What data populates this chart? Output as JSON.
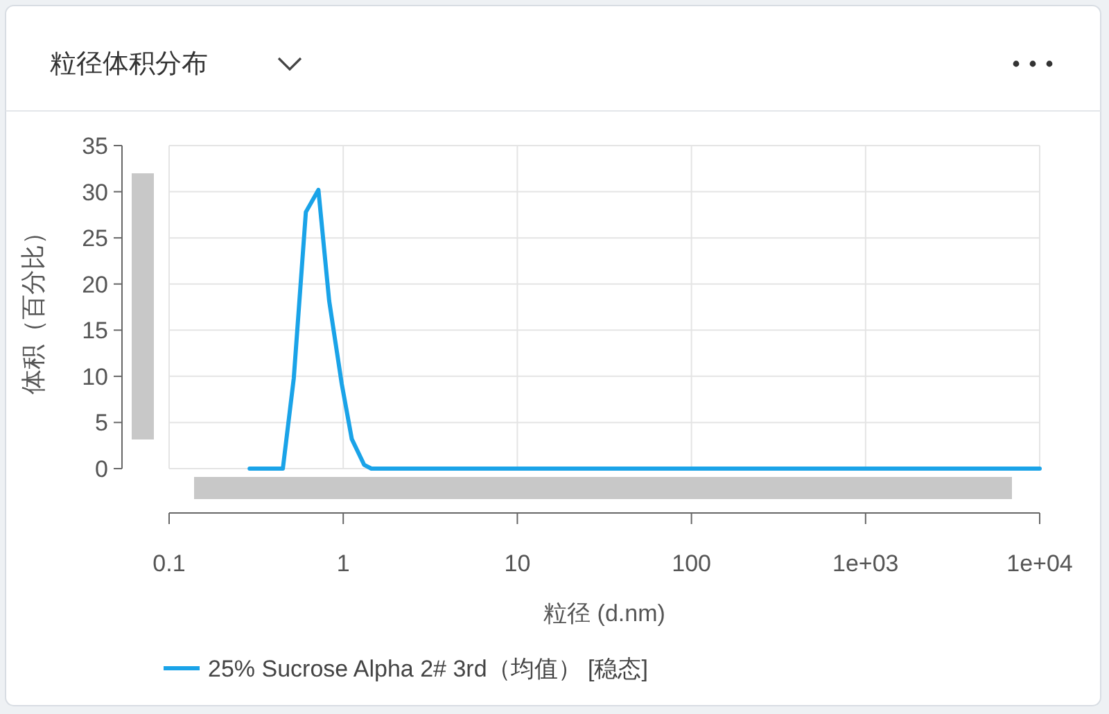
{
  "chart_data": {
    "type": "line",
    "title": "粒径体积分布",
    "xlabel": "粒径 (d.nm)",
    "ylabel": "体积（百分比）",
    "log": "x",
    "grid": true,
    "legend": "bottom",
    "xlim": [
      0.1,
      10000
    ],
    "ylim": [
      0,
      35
    ],
    "xticks": [
      0.1,
      1,
      10,
      100,
      {
        "value": 1000,
        "label": "1e+03"
      },
      {
        "value": 10000,
        "label": "1e+04"
      }
    ],
    "yticks": [
      0,
      5,
      10,
      15,
      20,
      25,
      30,
      35
    ],
    "x": [
      0.29,
      0.45,
      0.52,
      0.61,
      0.72,
      0.83,
      0.98,
      1.12,
      1.32,
      1.45,
      10000
    ],
    "series": [
      {
        "name": "25% Sucrose Alpha 2# 3rd（均值） [稳态]",
        "color": "#1aa3e8",
        "values": [
          0,
          0,
          9.8,
          27.8,
          30.2,
          18.2,
          9.2,
          3.2,
          0.4,
          0,
          0
        ]
      }
    ]
  }
}
